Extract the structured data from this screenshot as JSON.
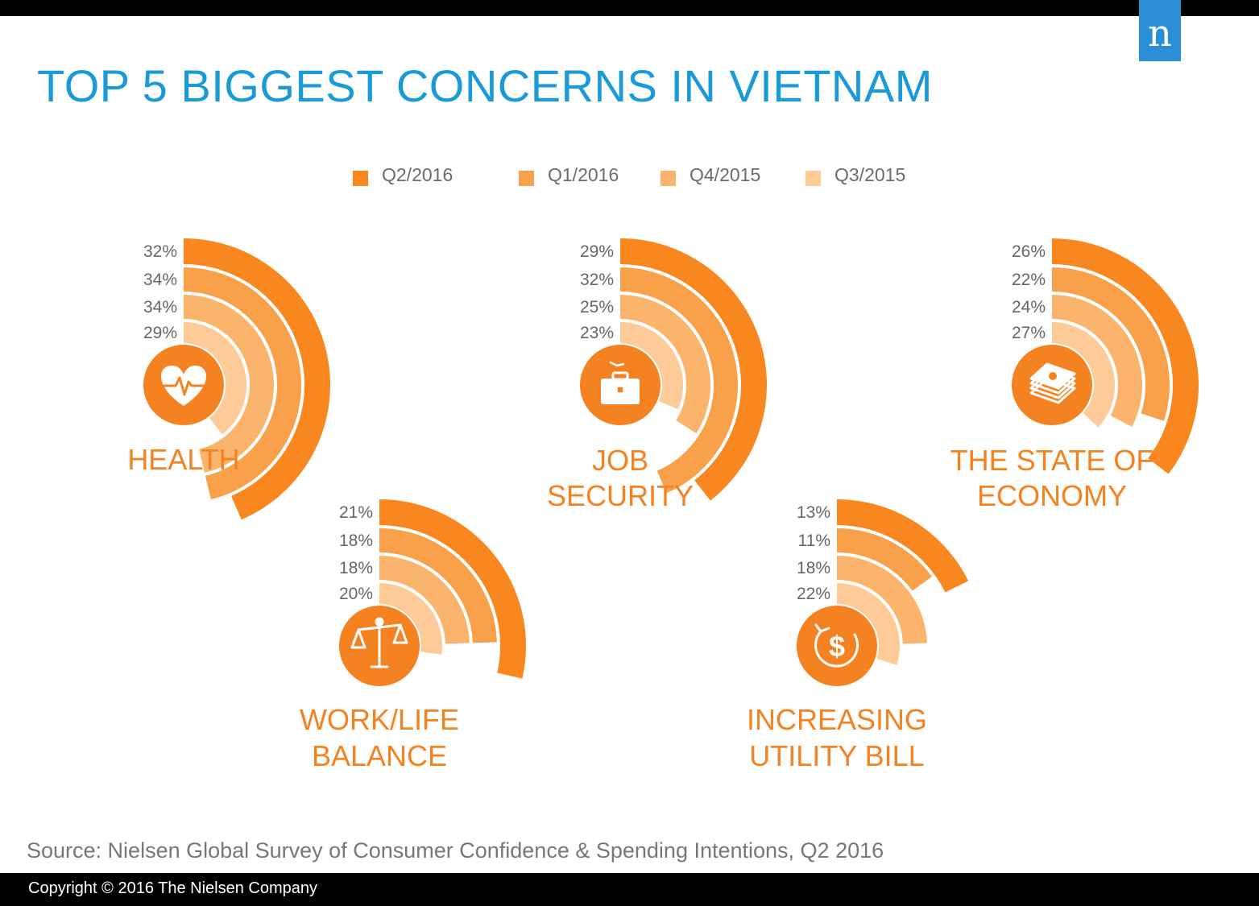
{
  "title": "TOP 5 BIGGEST CONCERNS IN VIETNAM",
  "source": "Source: Nielsen Global Survey of Consumer Confidence & Spending Intentions, Q2 2016",
  "copyright": "Copyright © 2016 The Nielsen Company",
  "logo_letter": "n",
  "colors": {
    "title": "#1a9ad6",
    "accent": "#f58220",
    "logo_bg": "#2b8fd6",
    "series": [
      "#f7871e",
      "#f9a14a",
      "#fbb46c",
      "#fdca98"
    ]
  },
  "legend": [
    {
      "label": "Q2/2016"
    },
    {
      "label": "Q1/2016"
    },
    {
      "label": "Q4/2015"
    },
    {
      "label": "Q3/2015"
    }
  ],
  "chart_data": {
    "type": "radial-bar",
    "series_names": [
      "Q2/2016",
      "Q1/2016",
      "Q4/2015",
      "Q3/2015"
    ],
    "categories": [
      {
        "label_lines": [
          "HEALTH"
        ],
        "icon": "heart-pulse-icon",
        "values": [
          32,
          34,
          34,
          29
        ]
      },
      {
        "label_lines": [
          "JOB",
          "SECURITY"
        ],
        "icon": "briefcase-icon",
        "values": [
          29,
          32,
          25,
          23
        ]
      },
      {
        "label_lines": [
          "THE STATE OF",
          "ECONOMY"
        ],
        "icon": "money-stack-icon",
        "values": [
          26,
          22,
          24,
          27
        ]
      },
      {
        "label_lines": [
          "WORK/LIFE",
          "BALANCE"
        ],
        "icon": "balance-scale-icon",
        "values": [
          21,
          18,
          18,
          20
        ]
      },
      {
        "label_lines": [
          "INCREASING",
          "UTILITY BILL"
        ],
        "icon": "dollar-cycle-icon",
        "values": [
          13,
          11,
          18,
          22
        ]
      }
    ],
    "units": "%"
  }
}
